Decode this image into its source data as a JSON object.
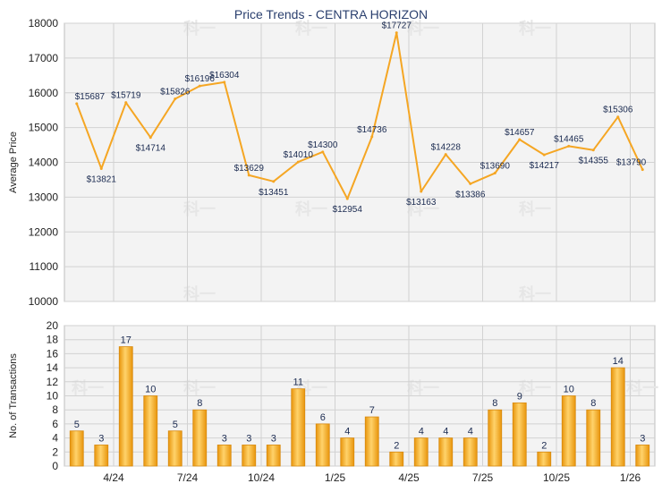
{
  "chart_data": [
    {
      "type": "line",
      "title": "Price Trends - CENTRA HORIZON",
      "ylabel": "Average Price",
      "ylim": [
        10000,
        18000
      ],
      "yticks": [
        10000,
        11000,
        12000,
        13000,
        14000,
        15000,
        16000,
        17000,
        18000
      ],
      "grid": true,
      "line_color": "#f5a623",
      "values": [
        15687,
        13821,
        15719,
        14714,
        15826,
        16196,
        16304,
        13629,
        13451,
        14010,
        14300,
        12954,
        14736,
        17727,
        13163,
        14228,
        13386,
        13690,
        14657,
        14217,
        14465,
        14355,
        15306,
        13790
      ],
      "data_labels": [
        "$15687",
        "$13821",
        "$15719",
        "$14714",
        "$15826",
        "$16196",
        "$16304",
        "$13629",
        "$13451",
        "$14010",
        "$14300",
        "$12954",
        "$14736",
        "$17727",
        "$13163",
        "$14228",
        "$13386",
        "$13690",
        "$14657",
        "$14217",
        "$14465",
        "$14355",
        "$15306",
        "$13790"
      ]
    },
    {
      "type": "bar",
      "ylabel": "No. of Transactions",
      "ylim": [
        0,
        20
      ],
      "yticks": [
        0,
        2,
        4,
        6,
        8,
        10,
        12,
        14,
        16,
        18,
        20
      ],
      "grid": true,
      "bar_color": "#f5a623",
      "categories_ticks": [
        "4/24",
        "7/24",
        "10/24",
        "1/25",
        "4/25",
        "7/25",
        "10/25",
        "1/26"
      ],
      "values": [
        5,
        3,
        17,
        10,
        5,
        8,
        3,
        3,
        3,
        11,
        6,
        4,
        7,
        2,
        4,
        4,
        4,
        8,
        9,
        2,
        10,
        8,
        14,
        3
      ]
    }
  ],
  "watermark_text": "科一"
}
